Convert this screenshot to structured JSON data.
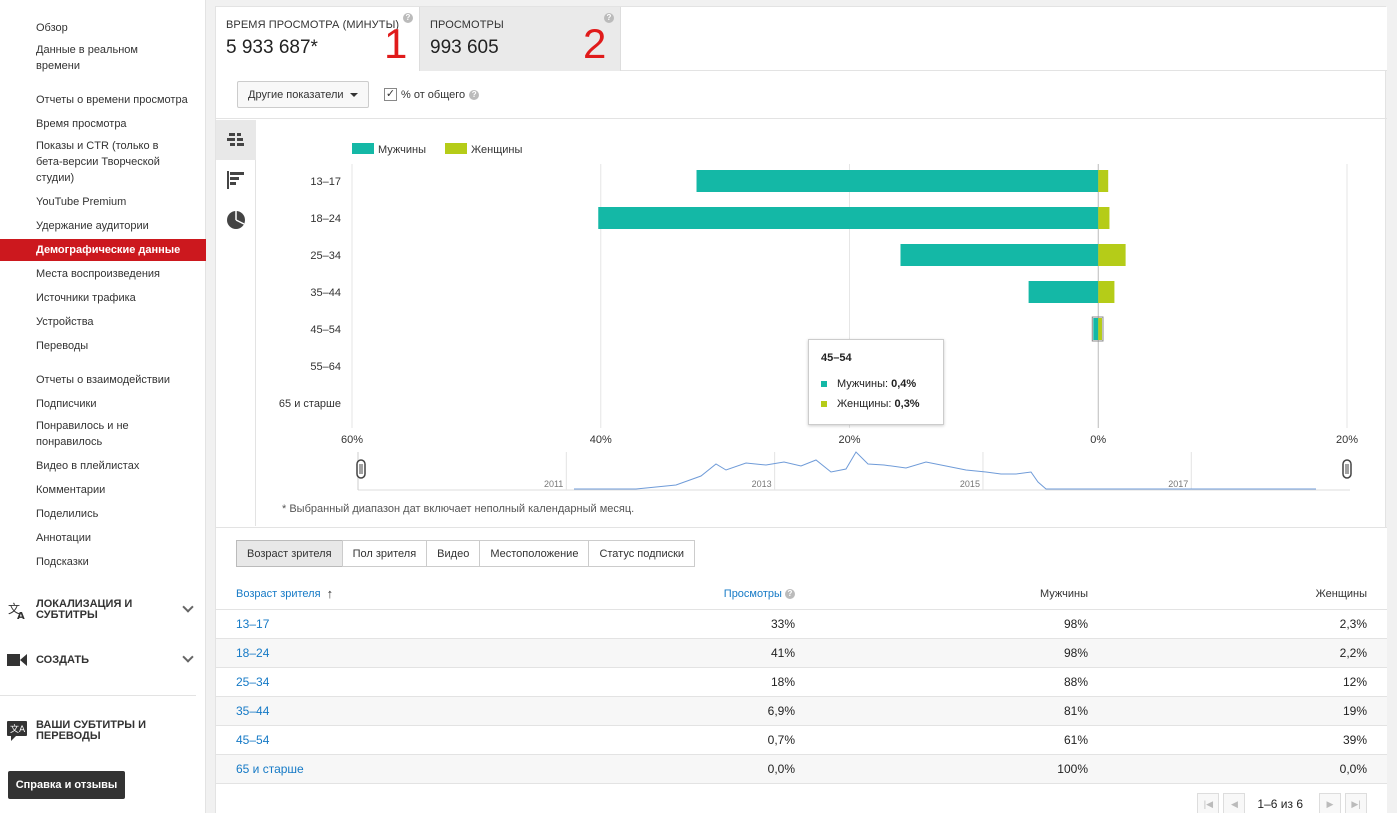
{
  "sidebar": {
    "items": [
      {
        "label": "Обзор"
      },
      {
        "label": "Данные в реальном времени"
      },
      {
        "label": "Отчеты о времени просмотра"
      },
      {
        "label": "Время просмотра"
      },
      {
        "label": "Показы и CTR (только в бета-версии Творческой студии)"
      },
      {
        "label": "YouTube Premium"
      },
      {
        "label": "Удержание аудитории"
      },
      {
        "label": "Демографические данные",
        "active": true
      },
      {
        "label": "Места воспроизведения"
      },
      {
        "label": "Источники трафика"
      },
      {
        "label": "Устройства"
      },
      {
        "label": "Переводы"
      },
      {
        "label": "Отчеты о взаимодействии"
      },
      {
        "label": "Подписчики"
      },
      {
        "label": "Понравилось и не понравилось"
      },
      {
        "label": "Видео в плейлистах"
      },
      {
        "label": "Комментарии"
      },
      {
        "label": "Поделились"
      },
      {
        "label": "Аннотации"
      },
      {
        "label": "Подсказки"
      }
    ],
    "groups": [
      {
        "label": "ЛОКАЛИЗАЦИЯ И СУБТИТРЫ",
        "icon": "translate-icon"
      },
      {
        "label": "СОЗДАТЬ",
        "icon": "video-camera-icon"
      },
      {
        "label": "ВАШИ СУБТИТРЫ И ПЕРЕВОДЫ",
        "icon": "subtitles-translate-icon"
      }
    ],
    "help_button": "Справка и отзывы"
  },
  "metrics": {
    "watch_time": {
      "label": "ВРЕМЯ ПРОСМОТРА (МИНУТЫ)",
      "value": "5 933 687*"
    },
    "views": {
      "label": "ПРОСМОТРЫ",
      "value": "993 605"
    },
    "annotations": [
      "1",
      "2"
    ]
  },
  "toolbar": {
    "other_metrics": "Другие показатели",
    "pct_label": "% от общего",
    "pct_checked": true,
    "check_mark": "✓"
  },
  "viz_modes": [
    "pyramid-icon",
    "bar-list-icon",
    "pie-icon"
  ],
  "chart_data": {
    "type": "bar",
    "orientation": "horizontal-diverging",
    "categories": [
      "13–17",
      "18–24",
      "25–34",
      "35–44",
      "45–54",
      "55–64",
      "65 и старше"
    ],
    "series": [
      {
        "name": "Мужчины",
        "color": "#14b8a6",
        "values": [
          32.3,
          40.2,
          15.9,
          5.6,
          0.4,
          0.0,
          0.0
        ]
      },
      {
        "name": "Женщины",
        "color": "#b5cc18",
        "values": [
          0.8,
          0.9,
          2.2,
          1.3,
          0.3,
          0.0,
          0.0
        ]
      }
    ],
    "x_ticks": [
      "60%",
      "40%",
      "20%",
      "0%",
      "20%"
    ],
    "xlim": [
      -60,
      20
    ],
    "legend_position": "top-left",
    "timeline": {
      "labels": [
        "2011",
        "2013",
        "2015",
        "2017"
      ]
    },
    "tooltip": {
      "title": "45–54",
      "rows": [
        {
          "label": "Мужчины: ",
          "value": "0,4%"
        },
        {
          "label": "Женщины: ",
          "value": "0,3%"
        }
      ]
    }
  },
  "range_note": "* Выбранный диапазон дат включает неполный календарный месяц.",
  "dimension_tabs": [
    "Возраст зрителя",
    "Пол зрителя",
    "Видео",
    "Местоположение",
    "Статус подписки"
  ],
  "table": {
    "headers": {
      "age": "Возраст зрителя",
      "views": "Просмотры",
      "male": "Мужчины",
      "female": "Женщины",
      "sort_arrow": "↑",
      "help": "?"
    },
    "rows": [
      {
        "age": "13–17",
        "views": "33%",
        "male": "98%",
        "female": "2,3%"
      },
      {
        "age": "18–24",
        "views": "41%",
        "male": "98%",
        "female": "2,2%"
      },
      {
        "age": "25–34",
        "views": "18%",
        "male": "88%",
        "female": "12%"
      },
      {
        "age": "35–44",
        "views": "6,9%",
        "male": "81%",
        "female": "19%"
      },
      {
        "age": "45–54",
        "views": "0,7%",
        "male": "61%",
        "female": "39%"
      },
      {
        "age": "65 и старше",
        "views": "0,0%",
        "male": "100%",
        "female": "0,0%"
      }
    ]
  },
  "pager": {
    "text": "1–6 из 6"
  }
}
